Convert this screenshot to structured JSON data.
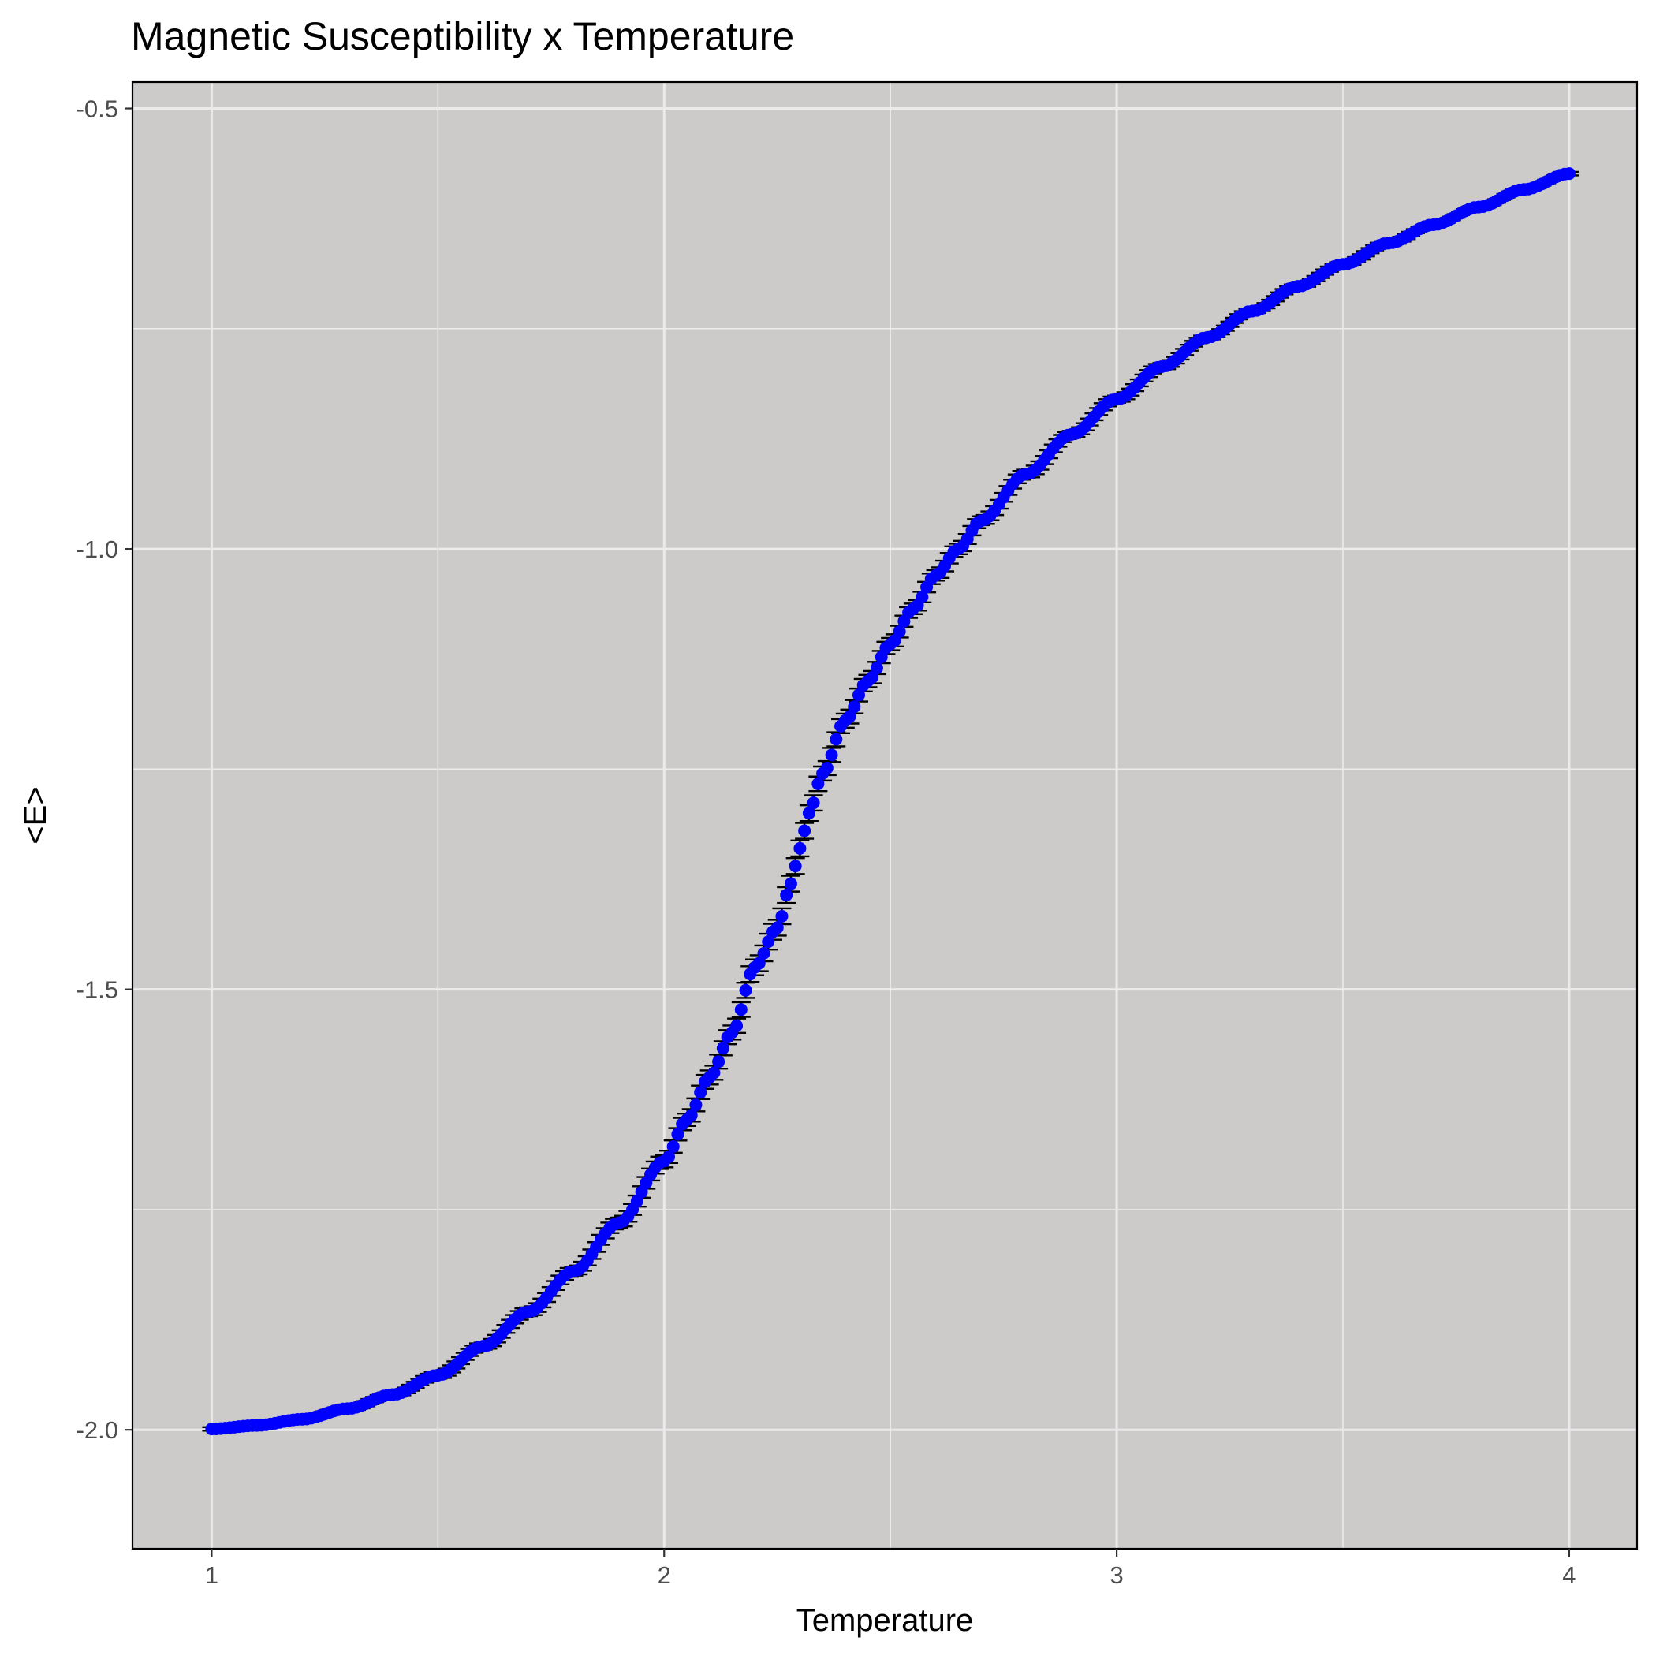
{
  "chart_data": {
    "type": "scatter",
    "title": "Magnetic Susceptibility x Temperature",
    "xlabel": "Temperature",
    "ylabel": "<E>",
    "xlim": [
      0.825,
      4.15
    ],
    "ylim": [
      -2.135,
      -0.47
    ],
    "x_ticks": [
      1,
      2,
      3,
      4
    ],
    "x_tick_labels": [
      "1",
      "2",
      "3",
      "4"
    ],
    "x_minor_grid": [
      1.5,
      2.5,
      3.5
    ],
    "y_ticks": [
      -2.0,
      -1.5,
      -1.0,
      -0.5
    ],
    "y_tick_labels": [
      "-2.0",
      "-1.5",
      "-1.0",
      "-0.5"
    ],
    "y_minor_grid": [
      -1.75,
      -1.25,
      -0.75
    ],
    "grid": true,
    "legend": "none",
    "colors": {
      "panel_background": "#cdcaca",
      "grid": "#ebebeb",
      "points": "#0000ff",
      "error_bars": "#000000",
      "panel_border": "#000000"
    },
    "series": [
      {
        "x": [
          1.0,
          1.1,
          1.2,
          1.3,
          1.4,
          1.5,
          1.6,
          1.7,
          1.8,
          1.9,
          2.0,
          2.05,
          2.1,
          2.15,
          2.2,
          2.25,
          2.28,
          2.3,
          2.32,
          2.35,
          2.4,
          2.45,
          2.5,
          2.55,
          2.6,
          2.65,
          2.7,
          2.8,
          2.9,
          3.0,
          3.1,
          3.2,
          3.3,
          3.4,
          3.5,
          3.6,
          3.7,
          3.8,
          3.9,
          4.0
        ],
        "y": [
          -1.999,
          -1.995,
          -1.988,
          -1.976,
          -1.96,
          -1.938,
          -1.905,
          -1.866,
          -1.82,
          -1.765,
          -1.695,
          -1.648,
          -1.6,
          -1.549,
          -1.475,
          -1.43,
          -1.38,
          -1.34,
          -1.3,
          -1.255,
          -1.195,
          -1.15,
          -1.108,
          -1.068,
          -1.03,
          -1.0,
          -0.968,
          -0.915,
          -0.87,
          -0.83,
          -0.793,
          -0.76,
          -0.73,
          -0.702,
          -0.677,
          -0.653,
          -0.632,
          -0.612,
          -0.592,
          -0.574
        ],
        "error": [
          0.002,
          0.002,
          0.003,
          0.003,
          0.003,
          0.004,
          0.004,
          0.005,
          0.005,
          0.006,
          0.007,
          0.007,
          0.008,
          0.008,
          0.009,
          0.009,
          0.009,
          0.009,
          0.009,
          0.008,
          0.008,
          0.007,
          0.007,
          0.006,
          0.006,
          0.006,
          0.005,
          0.005,
          0.004,
          0.004,
          0.004,
          0.003,
          0.003,
          0.003,
          0.003,
          0.003,
          0.002,
          0.002,
          0.002,
          0.002
        ]
      }
    ]
  }
}
